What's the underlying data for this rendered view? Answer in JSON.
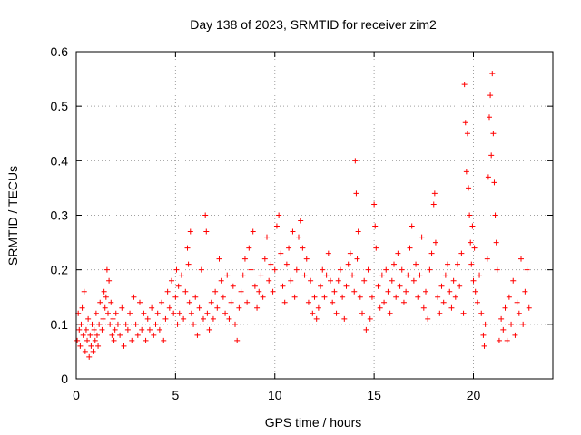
{
  "chart_data": {
    "type": "scatter",
    "title": "Day 138 of 2023, SRMTID for receiver zim2",
    "xlabel": "GPS time / hours",
    "ylabel": "SRMTID / TECUs",
    "xlim": [
      0,
      24
    ],
    "ylim": [
      0,
      0.6
    ],
    "x_ticks": [
      0,
      5,
      10,
      15,
      20
    ],
    "x_tick_labels": [
      "0",
      "5",
      "10",
      "15",
      "20"
    ],
    "y_ticks": [
      0,
      0.1,
      0.2,
      0.3,
      0.4,
      0.5,
      0.6
    ],
    "y_tick_labels": [
      "0",
      "0.1",
      "0.2",
      "0.3",
      "0.4",
      "0.5",
      "0.6"
    ],
    "grid": true,
    "marker": "+",
    "series": [
      {
        "name": "SRMTID",
        "color": "#ff0000",
        "points": [
          [
            0.05,
            0.07
          ],
          [
            0.1,
            0.12
          ],
          [
            0.15,
            0.09
          ],
          [
            0.2,
            0.06
          ],
          [
            0.25,
            0.1
          ],
          [
            0.3,
            0.13
          ],
          [
            0.35,
            0.08
          ],
          [
            0.4,
            0.16
          ],
          [
            0.45,
            0.05
          ],
          [
            0.5,
            0.09
          ],
          [
            0.55,
            0.07
          ],
          [
            0.6,
            0.11
          ],
          [
            0.65,
            0.04
          ],
          [
            0.7,
            0.08
          ],
          [
            0.75,
            0.06
          ],
          [
            0.8,
            0.1
          ],
          [
            0.85,
            0.05
          ],
          [
            0.9,
            0.09
          ],
          [
            0.95,
            0.07
          ],
          [
            1.0,
            0.12
          ],
          [
            1.05,
            0.08
          ],
          [
            1.1,
            0.06
          ],
          [
            1.15,
            0.1
          ],
          [
            1.2,
            0.14
          ],
          [
            1.3,
            0.09
          ],
          [
            1.35,
            0.11
          ],
          [
            1.4,
            0.16
          ],
          [
            1.45,
            0.13
          ],
          [
            1.5,
            0.15
          ],
          [
            1.55,
            0.2
          ],
          [
            1.6,
            0.12
          ],
          [
            1.65,
            0.18
          ],
          [
            1.7,
            0.1
          ],
          [
            1.75,
            0.14
          ],
          [
            1.8,
            0.08
          ],
          [
            1.85,
            0.11
          ],
          [
            1.9,
            0.07
          ],
          [
            1.95,
            0.09
          ],
          [
            2.0,
            0.12
          ],
          [
            2.1,
            0.1
          ],
          [
            2.2,
            0.08
          ],
          [
            2.3,
            0.13
          ],
          [
            2.4,
            0.06
          ],
          [
            2.5,
            0.1
          ],
          [
            2.6,
            0.09
          ],
          [
            2.7,
            0.12
          ],
          [
            2.8,
            0.07
          ],
          [
            2.9,
            0.15
          ],
          [
            3.0,
            0.1
          ],
          [
            3.1,
            0.08
          ],
          [
            3.2,
            0.14
          ],
          [
            3.3,
            0.09
          ],
          [
            3.4,
            0.12
          ],
          [
            3.5,
            0.07
          ],
          [
            3.6,
            0.11
          ],
          [
            3.7,
            0.09
          ],
          [
            3.8,
            0.13
          ],
          [
            3.9,
            0.08
          ],
          [
            4.0,
            0.1
          ],
          [
            4.1,
            0.12
          ],
          [
            4.2,
            0.09
          ],
          [
            4.3,
            0.14
          ],
          [
            4.4,
            0.07
          ],
          [
            4.5,
            0.11
          ],
          [
            4.6,
            0.16
          ],
          [
            4.7,
            0.13
          ],
          [
            4.8,
            0.18
          ],
          [
            4.9,
            0.12
          ],
          [
            5.0,
            0.15
          ],
          [
            5.05,
            0.2
          ],
          [
            5.1,
            0.1
          ],
          [
            5.15,
            0.17
          ],
          [
            5.2,
            0.12
          ],
          [
            5.3,
            0.19
          ],
          [
            5.4,
            0.11
          ],
          [
            5.5,
            0.16
          ],
          [
            5.6,
            0.24
          ],
          [
            5.65,
            0.21
          ],
          [
            5.7,
            0.14
          ],
          [
            5.75,
            0.27
          ],
          [
            5.8,
            0.12
          ],
          [
            5.9,
            0.1
          ],
          [
            6.0,
            0.15
          ],
          [
            6.1,
            0.08
          ],
          [
            6.2,
            0.13
          ],
          [
            6.3,
            0.2
          ],
          [
            6.4,
            0.11
          ],
          [
            6.5,
            0.3
          ],
          [
            6.55,
            0.27
          ],
          [
            6.6,
            0.12
          ],
          [
            6.7,
            0.09
          ],
          [
            6.8,
            0.14
          ],
          [
            6.9,
            0.11
          ],
          [
            7.0,
            0.16
          ],
          [
            7.1,
            0.13
          ],
          [
            7.2,
            0.22
          ],
          [
            7.3,
            0.18
          ],
          [
            7.4,
            0.15
          ],
          [
            7.5,
            0.12
          ],
          [
            7.6,
            0.19
          ],
          [
            7.7,
            0.11
          ],
          [
            7.8,
            0.14
          ],
          [
            7.9,
            0.17
          ],
          [
            8.0,
            0.1
          ],
          [
            8.1,
            0.07
          ],
          [
            8.2,
            0.13
          ],
          [
            8.3,
            0.16
          ],
          [
            8.4,
            0.19
          ],
          [
            8.5,
            0.22
          ],
          [
            8.6,
            0.14
          ],
          [
            8.7,
            0.24
          ],
          [
            8.8,
            0.2
          ],
          [
            8.9,
            0.27
          ],
          [
            9.0,
            0.17
          ],
          [
            9.1,
            0.13
          ],
          [
            9.2,
            0.16
          ],
          [
            9.3,
            0.19
          ],
          [
            9.4,
            0.15
          ],
          [
            9.5,
            0.22
          ],
          [
            9.6,
            0.26
          ],
          [
            9.7,
            0.18
          ],
          [
            9.8,
            0.21
          ],
          [
            9.9,
            0.16
          ],
          [
            10.0,
            0.2
          ],
          [
            10.1,
            0.28
          ],
          [
            10.2,
            0.3
          ],
          [
            10.3,
            0.23
          ],
          [
            10.4,
            0.17
          ],
          [
            10.5,
            0.14
          ],
          [
            10.6,
            0.21
          ],
          [
            10.7,
            0.24
          ],
          [
            10.8,
            0.18
          ],
          [
            10.9,
            0.27
          ],
          [
            11.0,
            0.15
          ],
          [
            11.1,
            0.2
          ],
          [
            11.2,
            0.26
          ],
          [
            11.3,
            0.29
          ],
          [
            11.4,
            0.24
          ],
          [
            11.5,
            0.19
          ],
          [
            11.6,
            0.22
          ],
          [
            11.7,
            0.14
          ],
          [
            11.8,
            0.18
          ],
          [
            11.9,
            0.12
          ],
          [
            12.0,
            0.15
          ],
          [
            12.1,
            0.11
          ],
          [
            12.2,
            0.13
          ],
          [
            12.3,
            0.17
          ],
          [
            12.4,
            0.2
          ],
          [
            12.5,
            0.15
          ],
          [
            12.6,
            0.19
          ],
          [
            12.7,
            0.23
          ],
          [
            12.8,
            0.18
          ],
          [
            12.9,
            0.14
          ],
          [
            13.0,
            0.16
          ],
          [
            13.1,
            0.12
          ],
          [
            13.2,
            0.18
          ],
          [
            13.3,
            0.2
          ],
          [
            13.4,
            0.15
          ],
          [
            13.5,
            0.11
          ],
          [
            13.6,
            0.17
          ],
          [
            13.7,
            0.21
          ],
          [
            13.8,
            0.23
          ],
          [
            13.9,
            0.19
          ],
          [
            14.0,
            0.16
          ],
          [
            14.05,
            0.4
          ],
          [
            14.1,
            0.34
          ],
          [
            14.15,
            0.22
          ],
          [
            14.2,
            0.27
          ],
          [
            14.3,
            0.15
          ],
          [
            14.4,
            0.12
          ],
          [
            14.5,
            0.18
          ],
          [
            14.6,
            0.09
          ],
          [
            14.7,
            0.2
          ],
          [
            14.8,
            0.11
          ],
          [
            14.9,
            0.15
          ],
          [
            15.0,
            0.32
          ],
          [
            15.05,
            0.28
          ],
          [
            15.1,
            0.24
          ],
          [
            15.2,
            0.17
          ],
          [
            15.3,
            0.13
          ],
          [
            15.4,
            0.19
          ],
          [
            15.5,
            0.14
          ],
          [
            15.6,
            0.2
          ],
          [
            15.7,
            0.16
          ],
          [
            15.8,
            0.12
          ],
          [
            15.9,
            0.18
          ],
          [
            16.0,
            0.21
          ],
          [
            16.1,
            0.15
          ],
          [
            16.2,
            0.23
          ],
          [
            16.3,
            0.17
          ],
          [
            16.4,
            0.2
          ],
          [
            16.5,
            0.14
          ],
          [
            16.6,
            0.16
          ],
          [
            16.7,
            0.19
          ],
          [
            16.8,
            0.24
          ],
          [
            16.9,
            0.28
          ],
          [
            17.0,
            0.18
          ],
          [
            17.1,
            0.21
          ],
          [
            17.2,
            0.15
          ],
          [
            17.3,
            0.19
          ],
          [
            17.4,
            0.26
          ],
          [
            17.5,
            0.13
          ],
          [
            17.6,
            0.16
          ],
          [
            17.7,
            0.11
          ],
          [
            17.8,
            0.2
          ],
          [
            17.9,
            0.23
          ],
          [
            18.0,
            0.32
          ],
          [
            18.05,
            0.34
          ],
          [
            18.1,
            0.25
          ],
          [
            18.2,
            0.15
          ],
          [
            18.3,
            0.12
          ],
          [
            18.4,
            0.17
          ],
          [
            18.5,
            0.14
          ],
          [
            18.6,
            0.19
          ],
          [
            18.7,
            0.21
          ],
          [
            18.8,
            0.16
          ],
          [
            18.9,
            0.13
          ],
          [
            19.0,
            0.18
          ],
          [
            19.1,
            0.15
          ],
          [
            19.2,
            0.21
          ],
          [
            19.3,
            0.17
          ],
          [
            19.4,
            0.23
          ],
          [
            19.5,
            0.12
          ],
          [
            19.55,
            0.54
          ],
          [
            19.6,
            0.47
          ],
          [
            19.65,
            0.38
          ],
          [
            19.7,
            0.45
          ],
          [
            19.75,
            0.35
          ],
          [
            19.8,
            0.3
          ],
          [
            19.85,
            0.25
          ],
          [
            19.9,
            0.21
          ],
          [
            19.95,
            0.28
          ],
          [
            20.0,
            0.18
          ],
          [
            20.05,
            0.24
          ],
          [
            20.1,
            0.16
          ],
          [
            20.2,
            0.14
          ],
          [
            20.3,
            0.19
          ],
          [
            20.4,
            0.12
          ],
          [
            20.5,
            0.08
          ],
          [
            20.55,
            0.06
          ],
          [
            20.6,
            0.1
          ],
          [
            20.7,
            0.22
          ],
          [
            20.75,
            0.37
          ],
          [
            20.8,
            0.48
          ],
          [
            20.85,
            0.52
          ],
          [
            20.9,
            0.41
          ],
          [
            20.95,
            0.56
          ],
          [
            21.0,
            0.45
          ],
          [
            21.05,
            0.36
          ],
          [
            21.1,
            0.3
          ],
          [
            21.15,
            0.25
          ],
          [
            21.2,
            0.2
          ],
          [
            21.3,
            0.07
          ],
          [
            21.4,
            0.11
          ],
          [
            21.5,
            0.09
          ],
          [
            21.6,
            0.13
          ],
          [
            21.7,
            0.07
          ],
          [
            21.8,
            0.15
          ],
          [
            21.9,
            0.1
          ],
          [
            22.0,
            0.18
          ],
          [
            22.1,
            0.08
          ],
          [
            22.2,
            0.14
          ],
          [
            22.3,
            0.12
          ],
          [
            22.4,
            0.22
          ],
          [
            22.5,
            0.1
          ],
          [
            22.6,
            0.16
          ],
          [
            22.7,
            0.2
          ],
          [
            22.8,
            0.13
          ]
        ]
      }
    ]
  }
}
